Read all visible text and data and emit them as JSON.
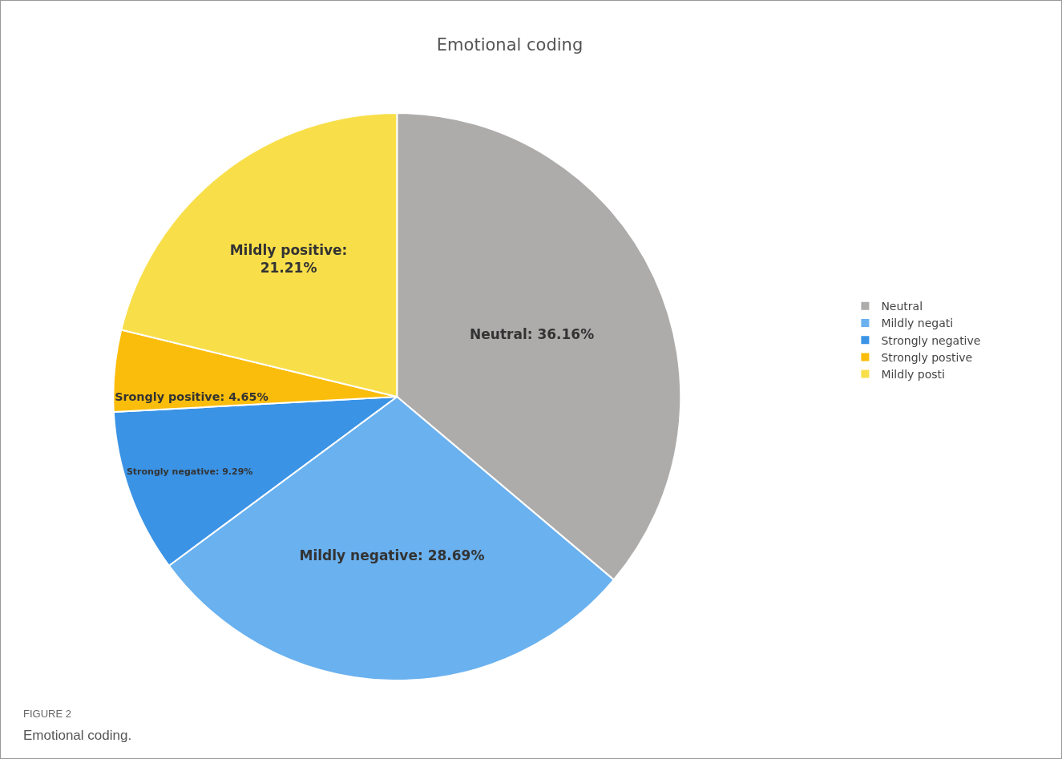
{
  "chart_data": {
    "type": "pie",
    "title": "Emotional coding",
    "categories": [
      "Neutral",
      "Mildly negati",
      "Strongly negative",
      "Strongly postive",
      "Mildly posti"
    ],
    "values": [
      36.16,
      28.69,
      9.29,
      4.65,
      21.21
    ],
    "colors": [
      "#aeabab",
      "#6ab1ef",
      "#3a93e5",
      "#fbbd0b",
      "#f8df4a"
    ],
    "value_labels": [
      "Neutral: 36.16%",
      "Mildly negative: 28.69%",
      "Strongly negative: 9.29%",
      "Srongly positive: 4.65%",
      "Mildly positive:\n21.21%"
    ],
    "legend": "right",
    "annotations": [
      "FIGURE 2",
      "Emotional coding."
    ]
  }
}
